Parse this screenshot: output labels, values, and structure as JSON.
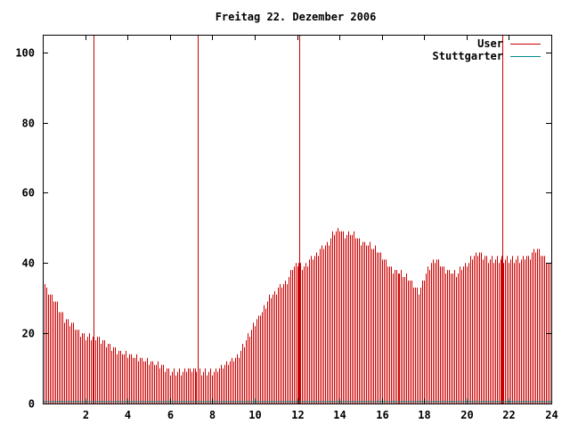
{
  "chart_data": {
    "type": "bar",
    "title": "Freitag 22. Dezember 2006",
    "xlabel": "",
    "ylabel": "",
    "xlim": [
      0,
      24
    ],
    "ylim": [
      0,
      105
    ],
    "x_ticks": [
      "2",
      "4",
      "6",
      "8",
      "10",
      "12",
      "14",
      "16",
      "18",
      "20",
      "22",
      "24"
    ],
    "y_ticks": [
      "0",
      "20",
      "40",
      "60",
      "80",
      "100"
    ],
    "grid": false,
    "legend_position": "top-right",
    "bar_interval_minutes": 5,
    "series": [
      {
        "name": "User",
        "color": "#cc0000",
        "anchors": [
          [
            0.0,
            37
          ],
          [
            0.1,
            33
          ],
          [
            0.25,
            32
          ],
          [
            0.5,
            30
          ],
          [
            0.75,
            27
          ],
          [
            1.0,
            24
          ],
          [
            1.25,
            23
          ],
          [
            1.5,
            22
          ],
          [
            1.75,
            20
          ],
          [
            2.0,
            19
          ],
          [
            2.5,
            19
          ],
          [
            3.0,
            17
          ],
          [
            3.5,
            15
          ],
          [
            4.0,
            14
          ],
          [
            4.5,
            13
          ],
          [
            5.0,
            12
          ],
          [
            5.5,
            11
          ],
          [
            6.0,
            9
          ],
          [
            6.5,
            9
          ],
          [
            7.0,
            10
          ],
          [
            7.5,
            9
          ],
          [
            8.0,
            9
          ],
          [
            8.25,
            10
          ],
          [
            8.5,
            11
          ],
          [
            9.0,
            13
          ],
          [
            9.25,
            14
          ],
          [
            9.5,
            17
          ],
          [
            9.75,
            20
          ],
          [
            10.0,
            23
          ],
          [
            10.5,
            28
          ],
          [
            10.75,
            31
          ],
          [
            11.0,
            32
          ],
          [
            11.5,
            35
          ],
          [
            11.75,
            39
          ],
          [
            12.0,
            40
          ],
          [
            12.25,
            39
          ],
          [
            12.5,
            40
          ],
          [
            13.0,
            43
          ],
          [
            13.5,
            46
          ],
          [
            13.75,
            49
          ],
          [
            14.0,
            50
          ],
          [
            14.25,
            48
          ],
          [
            14.5,
            49
          ],
          [
            15.0,
            46
          ],
          [
            15.5,
            45
          ],
          [
            16.0,
            42
          ],
          [
            16.5,
            38
          ],
          [
            17.0,
            37
          ],
          [
            17.5,
            34
          ],
          [
            17.75,
            32
          ],
          [
            18.0,
            36
          ],
          [
            18.25,
            39
          ],
          [
            18.5,
            41
          ],
          [
            18.75,
            40
          ],
          [
            19.0,
            38
          ],
          [
            19.5,
            37
          ],
          [
            20.0,
            40
          ],
          [
            20.5,
            43
          ],
          [
            21.0,
            41
          ],
          [
            21.5,
            41
          ],
          [
            22.0,
            41
          ],
          [
            22.5,
            41
          ],
          [
            23.0,
            42
          ],
          [
            23.25,
            44
          ],
          [
            23.5,
            43
          ],
          [
            24.0,
            39
          ]
        ],
        "peak_hours": [
          2.4,
          7.3,
          12.1,
          21.7
        ]
      },
      {
        "name": "Stuttgarter",
        "color": "#008b8b",
        "constant_value": 0
      }
    ]
  }
}
